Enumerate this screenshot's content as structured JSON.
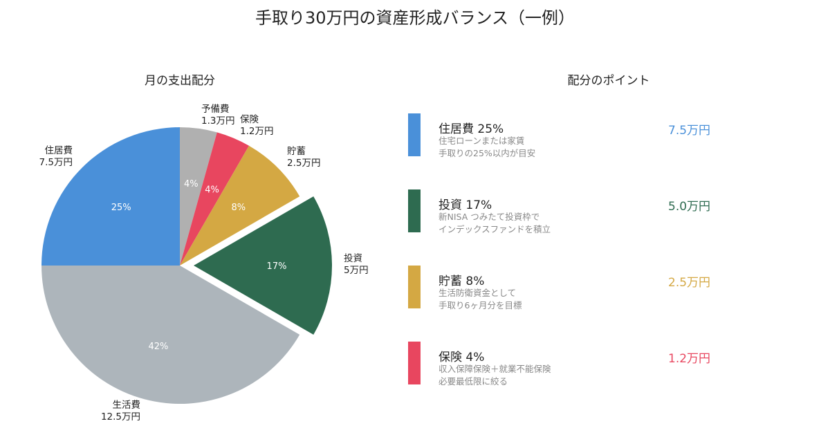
{
  "title": "手取り30万円の資産形成バランス（一例）",
  "chart_data": {
    "type": "pie",
    "title": "月の支出配分",
    "unit": "万円",
    "start": "top",
    "direction": "clockwise",
    "slices": [
      {
        "name": "予備費",
        "value": 1.3,
        "label": "1.3万円",
        "pct": "4%",
        "color": "#b0b0b0",
        "explode": false
      },
      {
        "name": "保険",
        "value": 1.2,
        "label": "1.2万円",
        "pct": "4%",
        "color": "#e8465f",
        "explode": false
      },
      {
        "name": "貯蓄",
        "value": 2.5,
        "label": "2.5万円",
        "pct": "8%",
        "color": "#d4a843",
        "explode": false
      },
      {
        "name": "投資",
        "value": 5,
        "label": "5万円",
        "pct": "17%",
        "color": "#2e6b50",
        "explode": true
      },
      {
        "name": "生活費",
        "value": 12.5,
        "label": "12.5万円",
        "pct": "42%",
        "color": "#adb5bb",
        "explode": false
      },
      {
        "name": "住居費",
        "value": 7.5,
        "label": "7.5万円",
        "pct": "25%",
        "color": "#4a90d9",
        "explode": false
      }
    ]
  },
  "points": {
    "title": "配分のポイント",
    "items": [
      {
        "head": "住居費 25%",
        "line1": "住宅ローンまたは家賃",
        "line2": "手取りの25%以内が目安",
        "amount": "7.5万円",
        "color": "#4a90d9"
      },
      {
        "head": "投資 17%",
        "line1": "新NISA つみたて投資枠で",
        "line2": "インデックスファンドを積立",
        "amount": "5.0万円",
        "color": "#2e6b50"
      },
      {
        "head": "貯蓄 8%",
        "line1": "生活防衛資金として",
        "line2": "手取り6ヶ月分を目標",
        "amount": "2.5万円",
        "color": "#d4a843"
      },
      {
        "head": "保険 4%",
        "line1": "収入保障保険＋就業不能保険",
        "line2": "必要最低限に絞る",
        "amount": "1.2万円",
        "color": "#e8465f"
      }
    ]
  }
}
